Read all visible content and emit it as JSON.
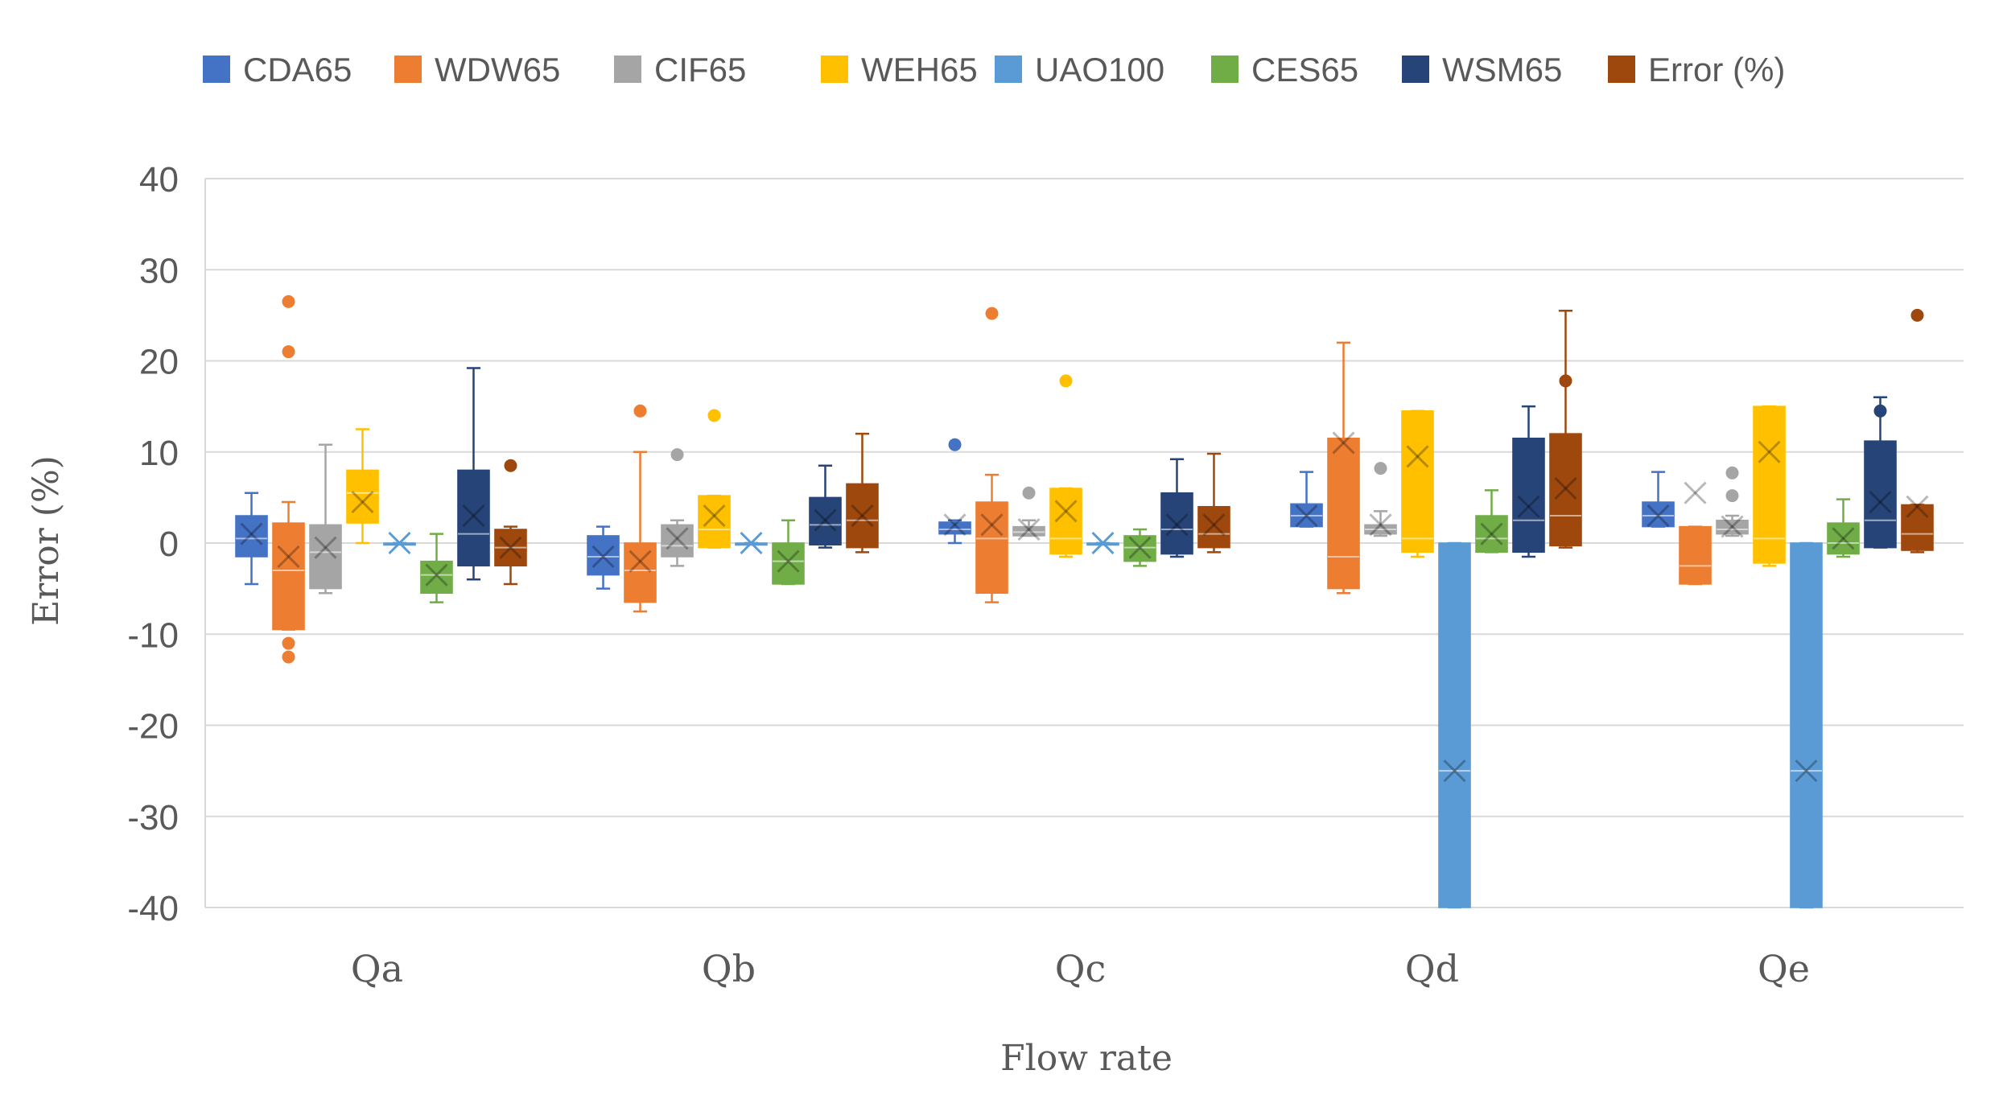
{
  "chart_data": {
    "type": "box",
    "title": "",
    "xlabel": "Flow rate",
    "ylabel": "Error (%)",
    "ylim": [
      -40,
      40
    ],
    "yticks": [
      40,
      30,
      20,
      10,
      0,
      -10,
      -20,
      -30,
      -40
    ],
    "categories": [
      "Qa",
      "Qb",
      "Qc",
      "Qd",
      "Qe"
    ],
    "legend_position": "top",
    "series": [
      {
        "name": "CDA65",
        "color": "#4472C4",
        "boxes": [
          {
            "min": -4.5,
            "q1": -1.5,
            "median": 0.5,
            "q3": 3,
            "max": 5.5,
            "mean": 1,
            "outliers": []
          },
          {
            "min": -5,
            "q1": -3.5,
            "median": -1.5,
            "q3": 0.8,
            "max": 1.8,
            "mean": -1.5,
            "outliers": []
          },
          {
            "min": 0,
            "q1": 1,
            "median": 1.5,
            "q3": 2.3,
            "max": 2.5,
            "mean": 2,
            "outliers": [
              10.8
            ]
          },
          {
            "min": 1.8,
            "q1": 1.8,
            "median": 3,
            "q3": 4.3,
            "max": 7.8,
            "mean": 3,
            "outliers": []
          },
          {
            "min": 1.8,
            "q1": 1.8,
            "median": 3,
            "q3": 4.5,
            "max": 7.8,
            "mean": 3,
            "outliers": []
          }
        ]
      },
      {
        "name": "WDW65",
        "color": "#ED7D31",
        "boxes": [
          {
            "min": -9.5,
            "q1": -9.5,
            "median": -3,
            "q3": 2.2,
            "max": 4.5,
            "mean": -1.5,
            "outliers": [
              26.5,
              21,
              -11,
              -12.5
            ]
          },
          {
            "min": -7.5,
            "q1": -6.5,
            "median": -3,
            "q3": 0,
            "max": 10,
            "mean": -2,
            "outliers": [
              14.5
            ]
          },
          {
            "min": -6.5,
            "q1": -5.5,
            "median": 0.5,
            "q3": 4.5,
            "max": 7.5,
            "mean": 2,
            "outliers": [
              25.2
            ]
          },
          {
            "min": -5.5,
            "q1": -5,
            "median": -1.5,
            "q3": 11.5,
            "max": 22,
            "mean": 11,
            "outliers": []
          },
          {
            "min": -4.5,
            "q1": -4.5,
            "median": -2.5,
            "q3": 1.8,
            "max": 1.8,
            "mean": 5.5,
            "outliers": []
          }
        ]
      },
      {
        "name": "CIF65",
        "color": "#A5A5A5",
        "boxes": [
          {
            "min": -5.5,
            "q1": -5,
            "median": -1,
            "q3": 2,
            "max": 10.8,
            "mean": -0.5,
            "outliers": []
          },
          {
            "min": -2.5,
            "q1": -1.5,
            "median": -0.3,
            "q3": 2,
            "max": 2.5,
            "mean": 0.5,
            "outliers": [
              9.7
            ]
          },
          {
            "min": 0.8,
            "q1": 0.8,
            "median": 1.2,
            "q3": 1.8,
            "max": 2.5,
            "mean": 1.5,
            "outliers": [
              5.5
            ]
          },
          {
            "min": 0.8,
            "q1": 1,
            "median": 1.5,
            "q3": 2,
            "max": 3.5,
            "mean": 2,
            "outliers": [
              8.2
            ]
          },
          {
            "min": 0.8,
            "q1": 1,
            "median": 1.5,
            "q3": 2.5,
            "max": 3,
            "mean": 1.8,
            "outliers": [
              7.7,
              5.2
            ]
          }
        ]
      },
      {
        "name": "WEH65",
        "color": "#FFC000",
        "boxes": [
          {
            "min": 0,
            "q1": 2.2,
            "median": 5.5,
            "q3": 8,
            "max": 12.5,
            "mean": 4.5,
            "outliers": []
          },
          {
            "min": -0.5,
            "q1": -0.5,
            "median": 1.5,
            "q3": 5.2,
            "max": 5.2,
            "mean": 3,
            "outliers": [
              14
            ]
          },
          {
            "min": -1.5,
            "q1": -1.2,
            "median": 0.5,
            "q3": 6,
            "max": 6,
            "mean": 3.5,
            "outliers": [
              17.8
            ]
          },
          {
            "min": -1.5,
            "q1": -1,
            "median": 0.5,
            "q3": 14.5,
            "max": 14.5,
            "mean": 9.5,
            "outliers": []
          },
          {
            "min": -2.5,
            "q1": -2.2,
            "median": 0.5,
            "q3": 15,
            "max": 15,
            "mean": 10,
            "outliers": []
          }
        ]
      },
      {
        "name": "UAO100",
        "color": "#5B9BD5",
        "boxes": [
          {
            "min": 0,
            "q1": 0,
            "median": 0,
            "q3": 0,
            "max": 0,
            "mean": 0,
            "outliers": []
          },
          {
            "min": 0,
            "q1": 0,
            "median": 0,
            "q3": 0,
            "max": 0,
            "mean": 0,
            "outliers": []
          },
          {
            "min": 0,
            "q1": 0,
            "median": 0,
            "q3": 0,
            "max": 0,
            "mean": 0,
            "outliers": []
          },
          {
            "min": -40,
            "q1": -40,
            "median": -25,
            "q3": 0,
            "max": 0,
            "mean": -25,
            "outliers": []
          },
          {
            "min": -40,
            "q1": -40,
            "median": -25,
            "q3": 0,
            "max": 0,
            "mean": -25,
            "outliers": []
          }
        ]
      },
      {
        "name": "CES65",
        "color": "#70AD47",
        "boxes": [
          {
            "min": -6.5,
            "q1": -5.5,
            "median": -3.5,
            "q3": -2,
            "max": 1,
            "mean": -3.5,
            "outliers": []
          },
          {
            "min": -4.5,
            "q1": -4.5,
            "median": -2,
            "q3": 0,
            "max": 2.5,
            "mean": -2,
            "outliers": []
          },
          {
            "min": -2.5,
            "q1": -2,
            "median": -0.5,
            "q3": 0.8,
            "max": 1.5,
            "mean": -0.5,
            "outliers": []
          },
          {
            "min": -1,
            "q1": -1,
            "median": 0.5,
            "q3": 3,
            "max": 5.8,
            "mean": 1,
            "outliers": []
          },
          {
            "min": -1.5,
            "q1": -1.2,
            "median": 0,
            "q3": 2.2,
            "max": 4.8,
            "mean": 0.5,
            "outliers": []
          }
        ]
      },
      {
        "name": "WSM65",
        "color": "#264478",
        "boxes": [
          {
            "min": -4,
            "q1": -2.5,
            "median": 1,
            "q3": 8,
            "max": 19.2,
            "mean": 3,
            "outliers": []
          },
          {
            "min": -0.5,
            "q1": -0.2,
            "median": 2,
            "q3": 5,
            "max": 8.5,
            "mean": 2.5,
            "outliers": []
          },
          {
            "min": -1.5,
            "q1": -1.2,
            "median": 1.5,
            "q3": 5.5,
            "max": 9.2,
            "mean": 2,
            "outliers": []
          },
          {
            "min": -1.5,
            "q1": -1,
            "median": 2.5,
            "q3": 11.5,
            "max": 15,
            "mean": 4,
            "outliers": []
          },
          {
            "min": -0.5,
            "q1": -0.5,
            "median": 2.5,
            "q3": 11.2,
            "max": 16,
            "mean": 4.5,
            "outliers": [
              14.5
            ]
          }
        ]
      },
      {
        "name": "Error (%)",
        "color": "#9E480E",
        "boxes": [
          {
            "min": -4.5,
            "q1": -2.5,
            "median": -0.5,
            "q3": 1.5,
            "max": 1.8,
            "mean": -0.5,
            "outliers": [
              8.5
            ]
          },
          {
            "min": -1,
            "q1": -0.5,
            "median": 2.5,
            "q3": 6.5,
            "max": 12,
            "mean": 3,
            "outliers": []
          },
          {
            "min": -1,
            "q1": -0.5,
            "median": 1,
            "q3": 4,
            "max": 9.8,
            "mean": 2,
            "outliers": []
          },
          {
            "min": -0.5,
            "q1": -0.3,
            "median": 3,
            "q3": 12,
            "max": 25.5,
            "mean": 6,
            "outliers": [
              17.8
            ]
          },
          {
            "min": -1,
            "q1": -0.8,
            "median": 1,
            "q3": 4.2,
            "max": 4.2,
            "mean": 4,
            "outliers": [
              25
            ]
          }
        ]
      }
    ]
  }
}
